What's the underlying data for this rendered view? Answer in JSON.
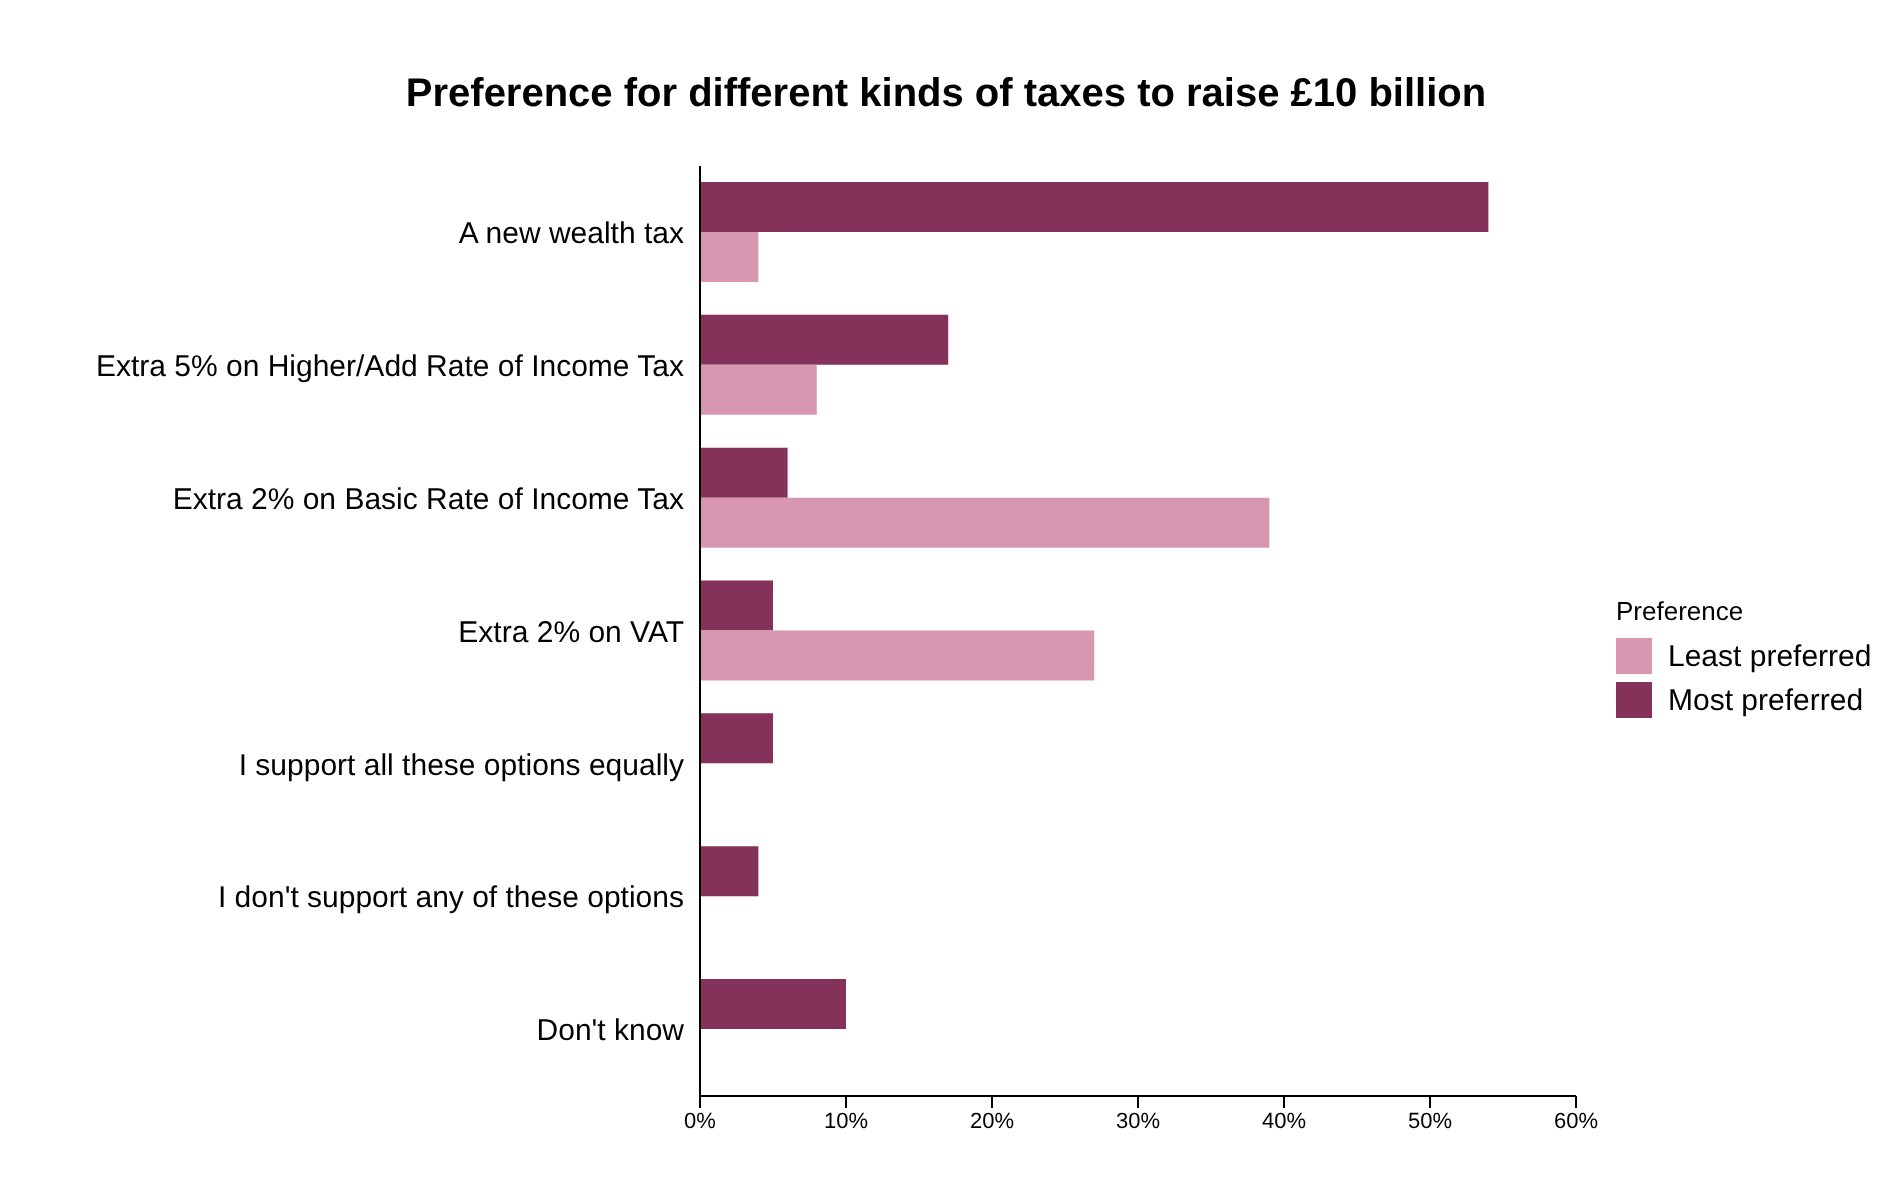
{
  "chart_data": {
    "type": "bar",
    "orientation": "horizontal",
    "title": "Preference for different kinds of taxes to raise £10 billion",
    "legend_title": "Preference",
    "legend": "right",
    "categories": [
      "A new wealth tax",
      "Extra 5% on Higher/Add Rate of Income Tax",
      "Extra 2% on Basic Rate of Income Tax",
      "Extra 2% on VAT",
      "I support all these options equally",
      "I don't support any of these options",
      "Don't know"
    ],
    "series": [
      {
        "name": "Least preferred",
        "color": "#d797b1",
        "values": [
          4,
          8,
          39,
          27,
          null,
          null,
          null
        ]
      },
      {
        "name": "Most preferred",
        "color": "#84325a",
        "values": [
          54,
          17,
          6,
          5,
          5,
          4,
          10
        ]
      }
    ],
    "xlim": [
      0,
      60
    ],
    "xticks": [
      {
        "value": 0,
        "label": "0%"
      },
      {
        "value": 10,
        "label": "10%"
      },
      {
        "value": 20,
        "label": "20%"
      },
      {
        "value": 30,
        "label": "30%"
      },
      {
        "value": 40,
        "label": "40%"
      },
      {
        "value": 50,
        "label": "50%"
      },
      {
        "value": 60,
        "label": "60%"
      }
    ],
    "grid": false
  }
}
